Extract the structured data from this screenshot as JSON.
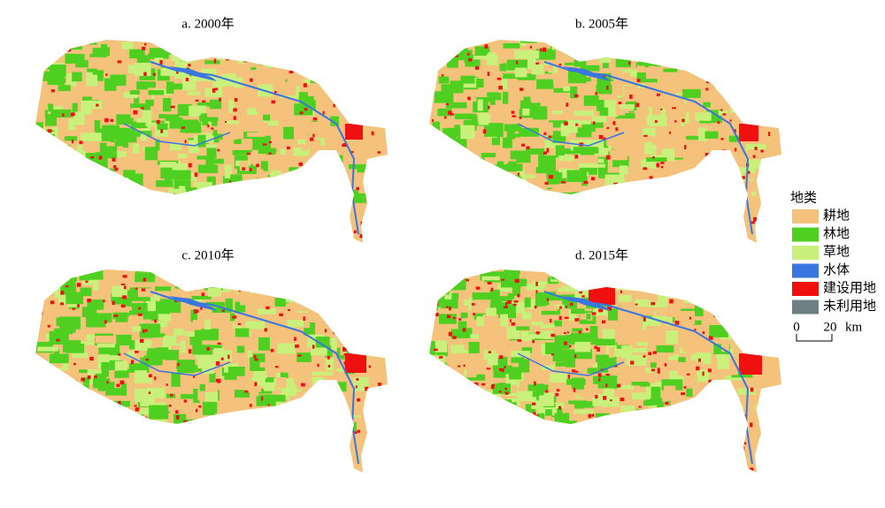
{
  "panels": [
    {
      "title": "a. 2000年"
    },
    {
      "title": "b. 2005年"
    },
    {
      "title": "c. 2010年"
    },
    {
      "title": "d. 2015年"
    }
  ],
  "legend": {
    "title": "地类",
    "items": [
      {
        "label": "耕地",
        "color": "#f5c27c"
      },
      {
        "label": "林地",
        "color": "#4fd020"
      },
      {
        "label": "草地",
        "color": "#c8f07a"
      },
      {
        "label": "水体",
        "color": "#3a76e0"
      },
      {
        "label": "建设用地",
        "color": "#f01010"
      },
      {
        "label": "未利用地",
        "color": "#6e7f86"
      }
    ]
  },
  "scale_bar": {
    "labels": [
      "0",
      "20"
    ],
    "unit": "km"
  }
}
